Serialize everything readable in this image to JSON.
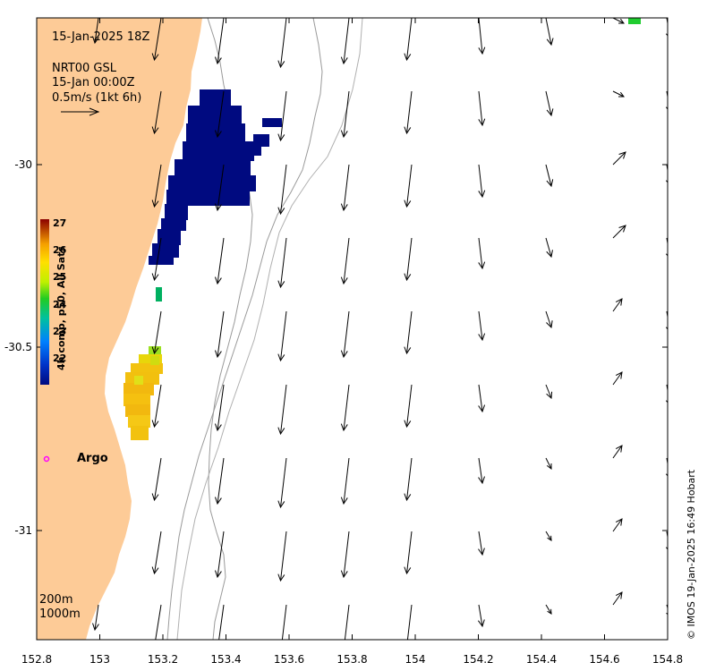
{
  "map": {
    "title_time": "15-Jan-2025 18Z",
    "current_product": "NRT00 GSL",
    "current_time": "15-Jan 00:00Z",
    "arrow_scale_label": "0.5m/s (1kt 6h)",
    "credit": "© IMOS 19-Jan-2025 16:49 Hobart",
    "argo_label": "Argo",
    "isobath_labels": [
      "200m",
      "1000m"
    ],
    "x_ticks": [
      "152.8",
      "153",
      "153.2",
      "153.4",
      "153.6",
      "153.8",
      "154",
      "154.2",
      "154.4",
      "154.6",
      "154.8"
    ],
    "y_ticks": [
      "-30",
      "-30.5",
      "-31"
    ],
    "colorbar": {
      "title": "4h comp, p50, All Sats",
      "ticks": [
        "27",
        "26",
        "25",
        "24",
        "23",
        "22"
      ],
      "min": 21.5,
      "max": 27
    },
    "colors": {
      "land": "#fdcb97",
      "ocean": "#ffffff",
      "argo_marker": "#ff00ff",
      "sst_cold": "#000a80",
      "sst_warm": "#f2c20f"
    }
  }
}
